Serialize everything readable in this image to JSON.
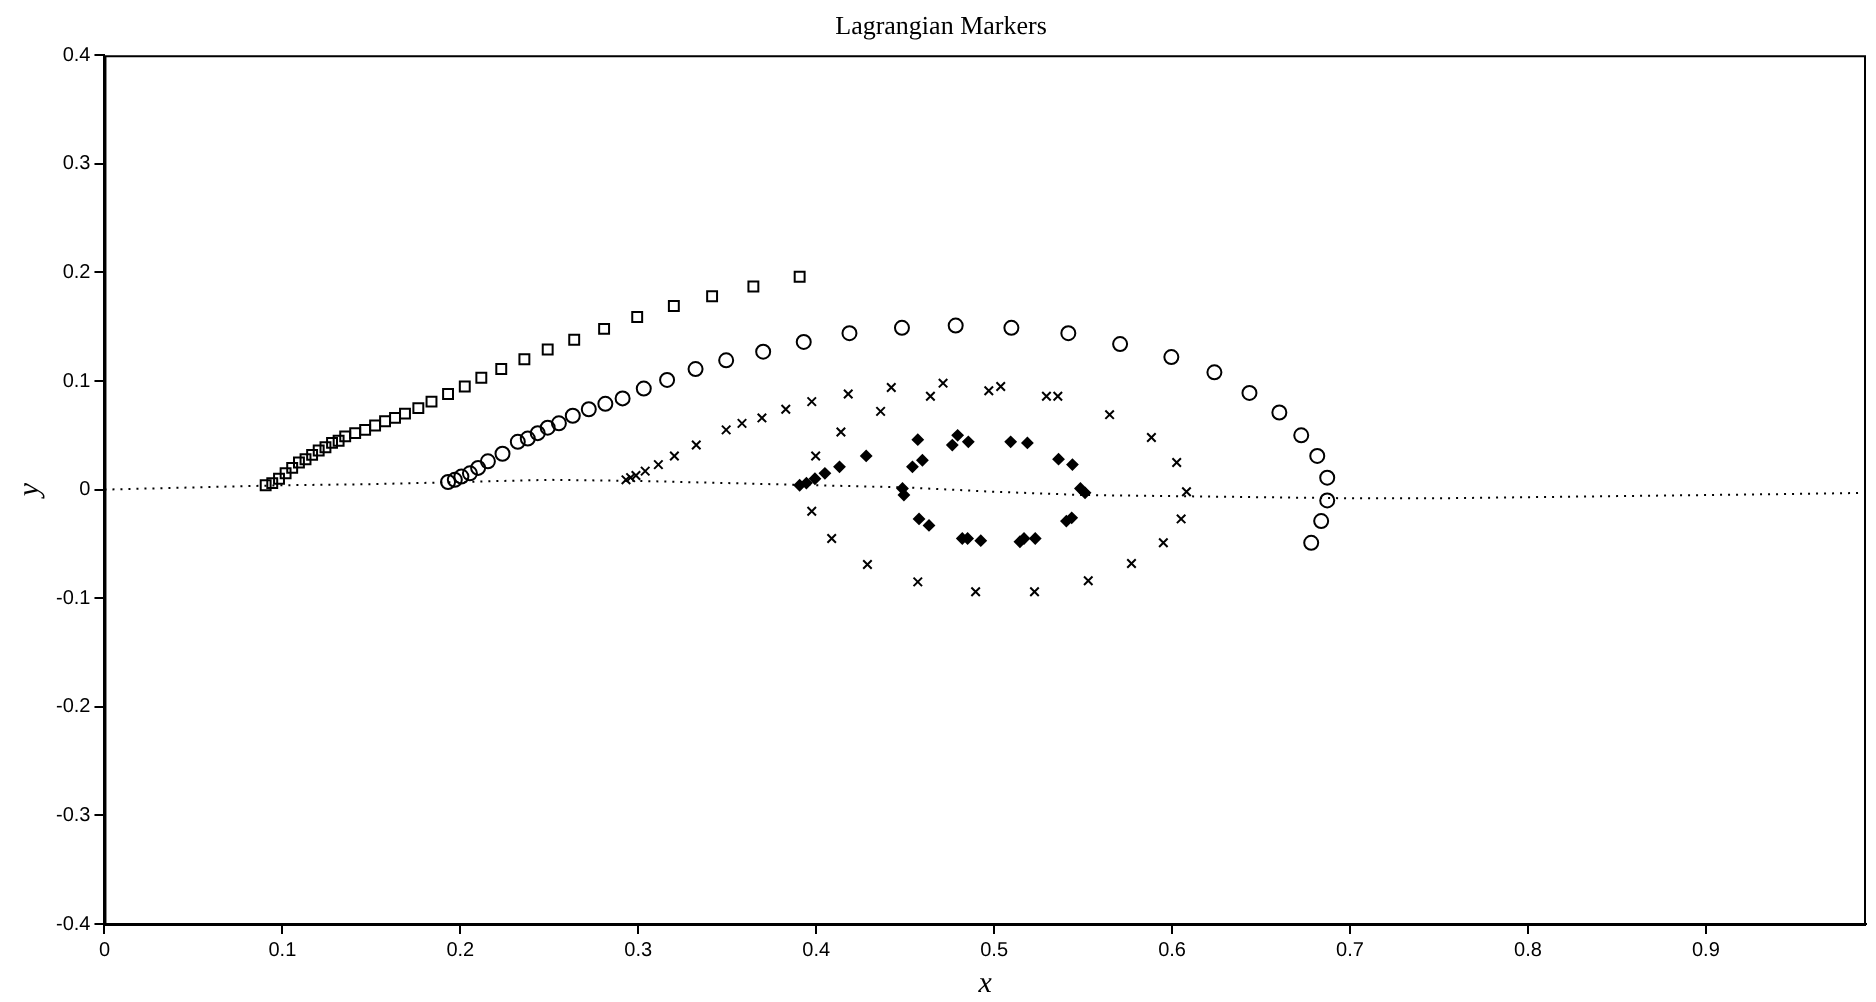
{
  "chart_data": {
    "type": "scatter",
    "title": "Lagrangian Markers",
    "xlabel": "x",
    "ylabel": "y",
    "xlim": [
      0,
      0.99
    ],
    "ylim": [
      -0.4,
      0.4
    ],
    "xticks": [
      0,
      0.1,
      0.2,
      0.3,
      0.4,
      0.5,
      0.6,
      0.7,
      0.8,
      0.9
    ],
    "yticks": [
      -0.4,
      -0.3,
      -0.2,
      -0.1,
      0,
      0.1,
      0.2,
      0.3,
      0.4
    ],
    "grid": false,
    "legend": false,
    "series": [
      {
        "type": "line",
        "marker": "none",
        "line_style": "dotted",
        "color": "#000000",
        "x": [
          0,
          0.05,
          0.1,
          0.15,
          0.2,
          0.25,
          0.3,
          0.35,
          0.4,
          0.45,
          0.5,
          0.55,
          0.6,
          0.65,
          0.7,
          0.75,
          0.8,
          0.85,
          0.9,
          0.95,
          0.99
        ],
        "values": [
          0,
          0.002,
          0.004,
          0.005,
          0.007,
          0.009,
          0.008,
          0.006,
          0.004,
          0.002,
          -0.002,
          -0.005,
          -0.006,
          -0.007,
          -0.008,
          -0.008,
          -0.007,
          -0.006,
          -0.005,
          -0.004,
          -0.003
        ]
      },
      {
        "marker": "square",
        "color": "#000000",
        "x": [
          0.0906,
          0.0943,
          0.0981,
          0.1018,
          0.1055,
          0.1093,
          0.113,
          0.1167,
          0.1204,
          0.1242,
          0.1279,
          0.1316,
          0.1353,
          0.1409,
          0.1465,
          0.1521,
          0.1577,
          0.1633,
          0.1689,
          0.1764,
          0.1838,
          0.1931,
          0.2025,
          0.2118,
          0.223,
          0.236,
          0.2491,
          0.264,
          0.2808,
          0.2994,
          0.32,
          0.3415,
          0.3647,
          0.3907
        ],
        "values": [
          0.004,
          0.006,
          0.01,
          0.015,
          0.02,
          0.025,
          0.028,
          0.032,
          0.036,
          0.039,
          0.043,
          0.045,
          0.049,
          0.052,
          0.055,
          0.059,
          0.063,
          0.066,
          0.07,
          0.075,
          0.081,
          0.088,
          0.095,
          0.103,
          0.111,
          0.12,
          0.129,
          0.138,
          0.148,
          0.159,
          0.169,
          0.178,
          0.187,
          0.196
        ]
      },
      {
        "marker": "circle",
        "color": "#000000",
        "x": [
          0.1931,
          0.1969,
          0.2006,
          0.2054,
          0.21,
          0.2155,
          0.2237,
          0.2323,
          0.2379,
          0.2435,
          0.2491,
          0.2554,
          0.2632,
          0.2722,
          0.2815,
          0.2912,
          0.3031,
          0.3162,
          0.3322,
          0.3494,
          0.3702,
          0.393,
          0.4187,
          0.4482,
          0.4784,
          0.5097,
          0.5417,
          0.5708,
          0.5996,
          0.6238,
          0.6435,
          0.6603,
          0.6726,
          0.6816,
          0.6872,
          0.6872,
          0.6838,
          0.6782
        ],
        "values": [
          0.007,
          0.009,
          0.012,
          0.015,
          0.02,
          0.026,
          0.033,
          0.044,
          0.047,
          0.052,
          0.057,
          0.061,
          0.068,
          0.074,
          0.079,
          0.084,
          0.093,
          0.101,
          0.111,
          0.119,
          0.127,
          0.136,
          0.144,
          0.149,
          0.151,
          0.149,
          0.144,
          0.134,
          0.122,
          0.108,
          0.089,
          0.071,
          0.05,
          0.031,
          0.011,
          -0.01,
          -0.029,
          -0.049
        ]
      },
      {
        "marker": "cross",
        "color": "#000000",
        "x": [
          0.2931,
          0.2957,
          0.2987,
          0.3039,
          0.3113,
          0.3203,
          0.3326,
          0.3494,
          0.3583,
          0.3695,
          0.3829,
          0.3975,
          0.418,
          0.4422,
          0.4713,
          0.5037,
          0.5358,
          0.5649,
          0.5884,
          0.6026,
          0.6081,
          0.6051,
          0.5951,
          0.5772,
          0.5529,
          0.5227,
          0.4896,
          0.4571,
          0.4288,
          0.4087,
          0.3975,
          0.3997,
          0.4139,
          0.4362,
          0.4642,
          0.497,
          0.5294
        ],
        "values": [
          0.009,
          0.011,
          0.013,
          0.017,
          0.023,
          0.031,
          0.041,
          0.055,
          0.061,
          0.066,
          0.074,
          0.081,
          0.088,
          0.094,
          0.098,
          0.095,
          0.086,
          0.069,
          0.048,
          0.025,
          -0.002,
          -0.027,
          -0.049,
          -0.068,
          -0.084,
          -0.094,
          -0.094,
          -0.085,
          -0.069,
          -0.045,
          -0.02,
          0.031,
          0.053,
          0.072,
          0.086,
          0.091,
          0.086
        ]
      },
      {
        "marker": "diamond",
        "color": "#000000",
        "x": [
          0.3907,
          0.3945,
          0.3993,
          0.4049,
          0.4131,
          0.4281,
          0.4541,
          0.4597,
          0.4571,
          0.4765,
          0.4795,
          0.4855,
          0.5075,
          0.5093,
          0.5187,
          0.5362,
          0.544,
          0.5485,
          0.5511,
          0.5436,
          0.5406,
          0.5231,
          0.5168,
          0.5145,
          0.4925,
          0.4851,
          0.4821,
          0.4634,
          0.4578,
          0.4493,
          0.4485
        ],
        "values": [
          0.004,
          0.006,
          0.01,
          0.015,
          0.021,
          0.031,
          0.021,
          0.027,
          0.046,
          0.041,
          0.05,
          0.044,
          null,
          0.044,
          0.043,
          0.028,
          0.023,
          0.001,
          -0.003,
          -0.026,
          -0.029,
          -0.045,
          -0.045,
          -0.048,
          -0.047,
          -0.045,
          -0.045,
          -0.033,
          -0.027,
          -0.005,
          0.001
        ]
      }
    ]
  }
}
